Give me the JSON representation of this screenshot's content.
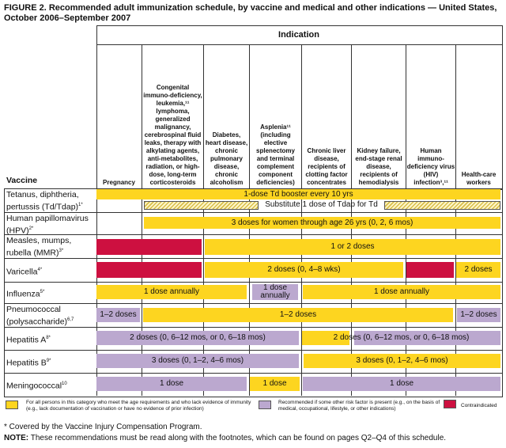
{
  "title": "FIGURE 2. Recommended adult immunization schedule, by vaccine and medical and other indications — United States, October 2006–September 2007",
  "indication_header": "Indication",
  "vaccine_header": "Vaccine",
  "columns": [
    "Pregnancy",
    "Congenital immuno-deficiency, leukemia,¹¹ lymphoma, generalized malignancy, cerebrospinal fluid leaks, therapy with alkylating agents, anti-metabolites, radiation, or high-dose, long-term corticosteroids",
    "Diabetes, heart disease, chronic pulmonary disease, chronic alcoholism",
    "Asplenia¹¹ (including elective splenectomy and terminal complement component deficiencies)",
    "Chronic liver disease, recipients of clotting factor concentrates",
    "Kidney failure, end-stage renal disease, recipients of hemodialysis",
    "Human immuno-deficiency virus (HIV) infection³,¹¹",
    "Health-care workers"
  ],
  "rows": [
    {
      "vaccine": "Tetanus, diphtheria, pertussis (Td/Tdap)",
      "sup": "1*",
      "bars": [
        "1-dose Td booster every 10 yrs",
        "Substitute 1 dose of Tdap for Td"
      ]
    },
    {
      "vaccine": "Human papillomavirus (HPV)",
      "sup": "2*",
      "bars": [
        "3 doses for women through age 26 yrs (0, 2, 6 mos)"
      ]
    },
    {
      "vaccine": "Measles, mumps, rubella (MMR)",
      "sup": "3*",
      "bars": [
        "",
        "1 or 2 doses"
      ]
    },
    {
      "vaccine": "Varicella",
      "sup": "4*",
      "bars": [
        "",
        "2 doses (0, 4–8 wks)",
        "",
        "2 doses"
      ]
    },
    {
      "vaccine": "Influenza",
      "sup": "5*",
      "bars": [
        "1 dose annually",
        "1 dose annually",
        "1 dose annually"
      ]
    },
    {
      "vaccine": "Pneumococcal (polysaccharide)",
      "sup": "6,7",
      "bars": [
        "1–2 doses",
        "1–2 doses",
        "1–2 doses"
      ]
    },
    {
      "vaccine": "Hepatitis A",
      "sup": "8*",
      "bars": [
        "2 doses (0, 6–12 mos, or 0, 6–18 mos)",
        "2 doses (0, 6–12 mos, or 0, 6–18 mos)"
      ]
    },
    {
      "vaccine": "Hepatitis B",
      "sup": "9*",
      "bars": [
        "3 doses (0, 1–2, 4–6 mos)",
        "3 doses (0, 1–2, 4–6 mos)"
      ]
    },
    {
      "vaccine": "Meningococcal",
      "sup": "10",
      "bars": [
        "1 dose",
        "1 dose",
        "1 dose"
      ]
    }
  ],
  "legend": [
    {
      "color": "#fdd520",
      "text": "For all persons in this category who meet the age requirements and who lack evidence of immunity (e.g., lack documentation of vaccination or have no evidence of prior infection)"
    },
    {
      "color": "#bba8cf",
      "text": "Recommended if some other risk factor is present (e.g., on the basis of medical, occupational, lifestyle, or other indications)"
    },
    {
      "color": "#cd1040",
      "text": "Contraindicated"
    }
  ],
  "footnote": "* Covered by the Vaccine Injury Compensation Program.",
  "note_label": "NOTE:",
  "note": " These recommendations must be read along with the footnotes, which can be found on pages Q2–Q4 of this schedule."
}
